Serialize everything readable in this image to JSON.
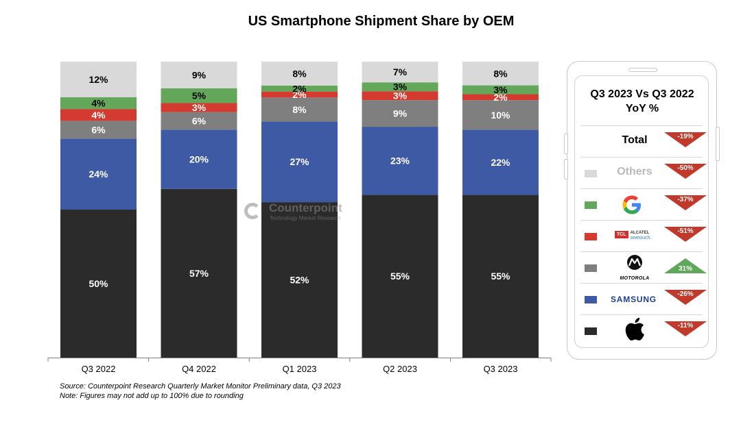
{
  "chart_data": {
    "type": "bar",
    "stacked": true,
    "title": "US Smartphone Shipment Share by OEM",
    "categories": [
      "Q3 2022",
      "Q4 2022",
      "Q1 2023",
      "Q2 2023",
      "Q3 2023"
    ],
    "ylim": [
      0,
      100
    ],
    "grid": false,
    "series": [
      {
        "key": "apple",
        "color": "#2b2b2b",
        "values": [
          50,
          57,
          52,
          55,
          55
        ],
        "labels": [
          "50%",
          "57%",
          "52%",
          "55%",
          "55%"
        ]
      },
      {
        "key": "samsung",
        "color": "#3f5aa5",
        "values": [
          24,
          20,
          27,
          23,
          22
        ],
        "labels": [
          "24%",
          "20%",
          "27%",
          "23%",
          "22%"
        ]
      },
      {
        "key": "motorola",
        "color": "#7f7f7f",
        "values": [
          6,
          6,
          8,
          9,
          10
        ],
        "labels": [
          "6%",
          "6%",
          "8%",
          "9%",
          "10%"
        ]
      },
      {
        "key": "tcl-alcatel",
        "color": "#d53a30",
        "values": [
          4,
          3,
          2,
          3,
          2
        ],
        "labels": [
          "4%",
          "3%",
          "2%",
          "3%",
          "2%"
        ]
      },
      {
        "key": "google",
        "color": "#63a75b",
        "values": [
          4,
          5,
          2,
          3,
          3
        ],
        "labels": [
          "4%",
          "5%",
          "2%",
          "3%",
          "3%"
        ]
      },
      {
        "key": "others",
        "color": "#d9d9d9",
        "values": [
          12,
          9,
          8,
          7,
          8
        ],
        "labels": [
          "12%",
          "9%",
          "8%",
          "7%",
          "8%"
        ]
      }
    ]
  },
  "watermark": {
    "brand": "Counterpoint",
    "sub": "Technology Market Research"
  },
  "notes": {
    "source": "Source: Counterpoint Research Quarterly Market Monitor Preliminary data, Q3 2023",
    "note": "Note: Figures may not add up to 100% due to rounding"
  },
  "yoy_panel": {
    "title_line1": "Q3 2023 Vs Q3 2022",
    "title_line2": "YoY %",
    "rows": [
      {
        "label": "Total",
        "change": "-19%",
        "direction": "down",
        "color": "#c0392b"
      },
      {
        "label": "Others",
        "swatch": "#d9d9d9",
        "change": "-50%",
        "direction": "down",
        "color": "#c0392b"
      },
      {
        "logo": "google-logo",
        "swatch": "#63a75b",
        "change": "-37%",
        "direction": "down",
        "color": "#c0392b"
      },
      {
        "logo": "tcl-alcatel-logo",
        "logo_text_1": "TCL",
        "logo_text_2": "ALCATEL",
        "logo_text_3": "onetouch.",
        "swatch": "#d53a30",
        "change": "-51%",
        "direction": "down",
        "color": "#c0392b"
      },
      {
        "logo": "motorola-logo",
        "logo_text": "MOTOROLA",
        "swatch": "#7f7f7f",
        "change": "31%",
        "direction": "up",
        "color": "#5fa85a"
      },
      {
        "logo": "samsung-logo",
        "logo_text": "SAMSUNG",
        "swatch": "#3f5aa5",
        "change": "-26%",
        "direction": "down",
        "color": "#c0392b"
      },
      {
        "logo": "apple-logo",
        "swatch": "#2b2b2b",
        "change": "-11%",
        "direction": "down",
        "color": "#c0392b"
      }
    ]
  }
}
